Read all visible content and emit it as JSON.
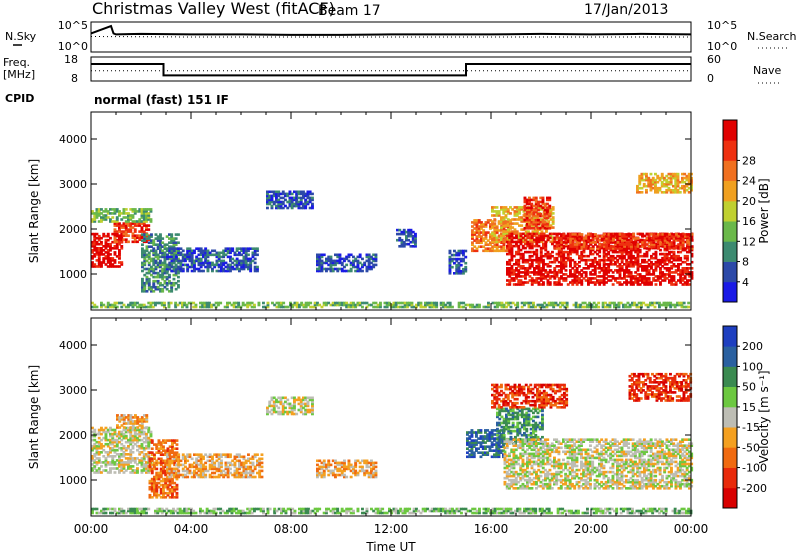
{
  "header": {
    "station": "Christmas Valley West (fitACF)",
    "beam": "Beam 17",
    "date": "17/Jan/2013"
  },
  "labels": {
    "nsky": "N.Sky",
    "nsearch": "N.Search",
    "freq_line1": "Freq.",
    "freq_line2": "[MHz]",
    "nave": "Nave",
    "cpid": "CPID",
    "mode": "normal (fast) 151 IF"
  },
  "colors": {
    "frame": "#000000",
    "ground_scatter": "#bdbdb4"
  },
  "chart_data": [
    {
      "id": "noise",
      "type": "line",
      "left_axis_ticks": [
        "10^5",
        "10^0"
      ],
      "right_axis_ticks": [
        "10^5",
        "10^0"
      ],
      "series": [
        {
          "name": "N.Sky",
          "x": [
            0,
            0.8,
            0.9,
            1,
            2,
            4,
            6,
            8,
            10,
            12,
            14,
            16,
            18,
            20,
            22,
            24
          ],
          "y": [
            3.2,
            4.6,
            3.2,
            3.0,
            3.1,
            3.0,
            3.0,
            2.9,
            2.9,
            3.0,
            3.0,
            3.0,
            3.1,
            3.0,
            3.1,
            3.0
          ]
        },
        {
          "name": "N.Search",
          "x": [
            0,
            4,
            8,
            12,
            16,
            20,
            24
          ],
          "y": [
            2.6,
            2.5,
            2.5,
            2.5,
            2.5,
            2.5,
            2.5
          ]
        }
      ]
    },
    {
      "id": "freq_nave",
      "type": "line",
      "left_axis_ticks": [
        "18",
        "8"
      ],
      "right_axis_ticks": [
        "60",
        "0"
      ],
      "series": [
        {
          "name": "Freq.",
          "x": [
            0,
            2.9,
            2.9,
            15,
            15,
            24
          ],
          "y": [
            15.5,
            15.5,
            9.8,
            9.8,
            15.5,
            15.5
          ]
        },
        {
          "name": "Nave",
          "x": [
            0,
            24
          ],
          "y": [
            25,
            25
          ]
        }
      ]
    },
    {
      "id": "power",
      "type": "heatmap",
      "xlabel": "",
      "ylabel": "Slant Range [km]",
      "xlim": [
        0,
        24
      ],
      "ylim": [
        200,
        4600
      ],
      "yticks": [
        1000,
        2000,
        3000,
        4000
      ],
      "colorbar_label": "Power [dB]",
      "colorbar_ticks": [
        "4",
        "8",
        "12",
        "16",
        "20",
        "24",
        "28"
      ],
      "colorbar_colors": [
        "#1a1ae6",
        "#2c49a8",
        "#3c8a70",
        "#6ab84a",
        "#c0d030",
        "#f0a020",
        "#f07020",
        "#ee3010",
        "#e00000"
      ],
      "regions": [
        {
          "t0": 0.0,
          "t1": 1.2,
          "r0": 1150,
          "r1": 1900,
          "level": 8
        },
        {
          "t0": 0.9,
          "t1": 2.3,
          "r0": 1700,
          "r1": 2150,
          "level": 7
        },
        {
          "t0": 0.0,
          "t1": 2.4,
          "r0": 2150,
          "r1": 2450,
          "level": 3
        },
        {
          "t0": 2.0,
          "t1": 3.5,
          "r0": 600,
          "r1": 1900,
          "level": 2
        },
        {
          "t0": 3.0,
          "t1": 6.6,
          "r0": 1050,
          "r1": 1550,
          "level": 1
        },
        {
          "t0": 7.0,
          "t1": 8.8,
          "r0": 2450,
          "r1": 2850,
          "level": 1
        },
        {
          "t0": 9.0,
          "t1": 11.4,
          "r0": 1050,
          "r1": 1450,
          "level": 1
        },
        {
          "t0": 12.2,
          "t1": 13.0,
          "r0": 1600,
          "r1": 2000,
          "level": 1
        },
        {
          "t0": 14.3,
          "t1": 15.0,
          "r0": 1000,
          "r1": 1500,
          "level": 1
        },
        {
          "t0": 15.2,
          "t1": 16.8,
          "r0": 1500,
          "r1": 2200,
          "level": 6
        },
        {
          "t0": 16.0,
          "t1": 18.5,
          "r0": 1700,
          "r1": 2500,
          "level": 5
        },
        {
          "t0": 17.3,
          "t1": 18.3,
          "r0": 2000,
          "r1": 2700,
          "level": 7
        },
        {
          "t0": 16.6,
          "t1": 24.0,
          "r0": 750,
          "r1": 1900,
          "level": 8
        },
        {
          "t0": 18.5,
          "t1": 24.0,
          "r0": 1550,
          "r1": 1900,
          "level": 7
        },
        {
          "t0": 21.8,
          "t1": 24.0,
          "r0": 2800,
          "r1": 3250,
          "level": 5
        },
        {
          "t0": 0.0,
          "t1": 24.0,
          "r0": 250,
          "r1": 380,
          "level": 3
        }
      ]
    },
    {
      "id": "velocity",
      "type": "heatmap",
      "xlabel": "Time UT",
      "ylabel": "Slant Range [km]",
      "xlim": [
        0,
        24
      ],
      "ylim": [
        200,
        4600
      ],
      "xticks": [
        "00:00",
        "04:00",
        "08:00",
        "12:00",
        "16:00",
        "20:00",
        "00:00"
      ],
      "yticks": [
        1000,
        2000,
        3000,
        4000
      ],
      "colorbar_label": "Velocity [m s⁻¹]",
      "colorbar_ticks": [
        "200",
        "100",
        "50",
        "15",
        "-15",
        "-50",
        "-100",
        "-200"
      ],
      "colorbar_colors": [
        "#1e3fc0",
        "#2a60a0",
        "#3a8a50",
        "#6cc840",
        "#bdbdb4",
        "#f4a020",
        "#f06a10",
        "#e82a0a",
        "#d80000"
      ],
      "regions": [
        {
          "t0": 0.0,
          "t1": 2.4,
          "r0": 1150,
          "r1": 2150,
          "level": 4
        },
        {
          "t0": 1.0,
          "t1": 2.2,
          "r0": 2150,
          "r1": 2450,
          "level": 5
        },
        {
          "t0": 2.3,
          "t1": 3.4,
          "r0": 600,
          "r1": 1900,
          "level": 6
        },
        {
          "t0": 3.0,
          "t1": 6.8,
          "r0": 1050,
          "r1": 1550,
          "level": 5
        },
        {
          "t0": 7.0,
          "t1": 8.8,
          "r0": 2450,
          "r1": 2850,
          "level": 4
        },
        {
          "t0": 9.0,
          "t1": 11.4,
          "r0": 1050,
          "r1": 1450,
          "level": 5
        },
        {
          "t0": 15.0,
          "t1": 16.5,
          "r0": 1500,
          "r1": 2100,
          "level": 1
        },
        {
          "t0": 16.2,
          "t1": 18.0,
          "r0": 1800,
          "r1": 2600,
          "level": 2
        },
        {
          "t0": 16.5,
          "t1": 24.0,
          "r0": 800,
          "r1": 1900,
          "level": 4
        },
        {
          "t0": 16.0,
          "t1": 19.0,
          "r0": 2600,
          "r1": 3100,
          "level": 7
        },
        {
          "t0": 21.5,
          "t1": 24.0,
          "r0": 2750,
          "r1": 3350,
          "level": 7
        },
        {
          "t0": 0.0,
          "t1": 24.0,
          "r0": 250,
          "r1": 380,
          "level": 3
        }
      ]
    }
  ]
}
